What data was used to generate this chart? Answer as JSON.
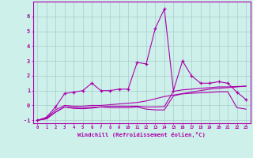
{
  "xlabel": "Windchill (Refroidissement éolien,°C)",
  "background_color": "#cef0ea",
  "grid_color": "#aacccc",
  "line_color": "#aa00aa",
  "x": [
    0,
    1,
    2,
    3,
    4,
    5,
    6,
    7,
    8,
    9,
    10,
    11,
    12,
    13,
    14,
    15,
    16,
    17,
    18,
    19,
    20,
    21,
    22,
    23
  ],
  "line1": [
    -1.0,
    -0.8,
    -0.1,
    0.8,
    0.9,
    1.0,
    1.5,
    1.0,
    1.0,
    1.1,
    1.1,
    2.9,
    2.8,
    5.2,
    6.5,
    1.0,
    3.0,
    2.0,
    1.5,
    1.5,
    1.6,
    1.5,
    0.9,
    0.4
  ],
  "line2": [
    -1.0,
    -0.85,
    -0.3,
    0.0,
    -0.05,
    -0.05,
    0.0,
    0.0,
    0.05,
    0.1,
    0.15,
    0.2,
    0.3,
    0.45,
    0.6,
    0.7,
    0.8,
    0.9,
    1.0,
    1.1,
    1.15,
    1.2,
    1.25,
    1.3
  ],
  "line3": [
    -1.0,
    -0.9,
    -0.45,
    -0.1,
    -0.15,
    -0.18,
    -0.12,
    -0.1,
    -0.05,
    -0.05,
    -0.05,
    -0.05,
    -0.1,
    -0.1,
    -0.08,
    0.95,
    1.05,
    1.1,
    1.15,
    1.2,
    1.25,
    1.25,
    1.28,
    1.3
  ],
  "line4": [
    -1.0,
    -0.9,
    -0.45,
    -0.1,
    -0.2,
    -0.22,
    -0.18,
    -0.1,
    -0.15,
    -0.15,
    -0.15,
    -0.1,
    -0.25,
    -0.3,
    -0.3,
    0.65,
    0.78,
    0.82,
    0.85,
    0.88,
    0.92,
    0.92,
    -0.15,
    -0.25
  ],
  "ylim": [
    -1.2,
    7.0
  ],
  "xlim": [
    -0.5,
    23.5
  ],
  "yticks": [
    -1,
    0,
    1,
    2,
    3,
    4,
    5,
    6
  ],
  "xticks": [
    0,
    1,
    2,
    3,
    4,
    5,
    6,
    7,
    8,
    9,
    10,
    11,
    12,
    13,
    14,
    15,
    16,
    17,
    18,
    19,
    20,
    21,
    22,
    23
  ]
}
